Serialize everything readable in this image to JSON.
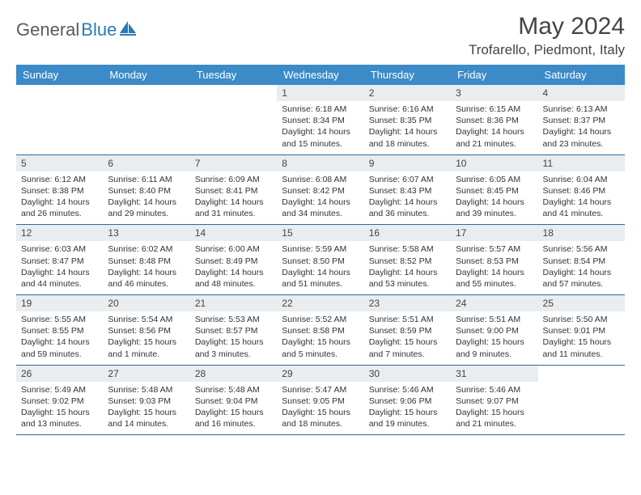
{
  "logo": {
    "text_gray": "General",
    "text_blue": "Blue"
  },
  "title": "May 2024",
  "location": "Trofarello, Piedmont, Italy",
  "colors": {
    "header_bg": "#3b8bc8",
    "header_text": "#ffffff",
    "daynum_bg": "#e9edef",
    "row_border": "#2a6a9e",
    "logo_gray": "#5a5a5a",
    "logo_blue": "#2a7ab8"
  },
  "day_headers": [
    "Sunday",
    "Monday",
    "Tuesday",
    "Wednesday",
    "Thursday",
    "Friday",
    "Saturday"
  ],
  "weeks": [
    [
      null,
      null,
      null,
      {
        "n": "1",
        "sr": "6:18 AM",
        "ss": "8:34 PM",
        "dl": "14 hours and 15 minutes."
      },
      {
        "n": "2",
        "sr": "6:16 AM",
        "ss": "8:35 PM",
        "dl": "14 hours and 18 minutes."
      },
      {
        "n": "3",
        "sr": "6:15 AM",
        "ss": "8:36 PM",
        "dl": "14 hours and 21 minutes."
      },
      {
        "n": "4",
        "sr": "6:13 AM",
        "ss": "8:37 PM",
        "dl": "14 hours and 23 minutes."
      }
    ],
    [
      {
        "n": "5",
        "sr": "6:12 AM",
        "ss": "8:38 PM",
        "dl": "14 hours and 26 minutes."
      },
      {
        "n": "6",
        "sr": "6:11 AM",
        "ss": "8:40 PM",
        "dl": "14 hours and 29 minutes."
      },
      {
        "n": "7",
        "sr": "6:09 AM",
        "ss": "8:41 PM",
        "dl": "14 hours and 31 minutes."
      },
      {
        "n": "8",
        "sr": "6:08 AM",
        "ss": "8:42 PM",
        "dl": "14 hours and 34 minutes."
      },
      {
        "n": "9",
        "sr": "6:07 AM",
        "ss": "8:43 PM",
        "dl": "14 hours and 36 minutes."
      },
      {
        "n": "10",
        "sr": "6:05 AM",
        "ss": "8:45 PM",
        "dl": "14 hours and 39 minutes."
      },
      {
        "n": "11",
        "sr": "6:04 AM",
        "ss": "8:46 PM",
        "dl": "14 hours and 41 minutes."
      }
    ],
    [
      {
        "n": "12",
        "sr": "6:03 AM",
        "ss": "8:47 PM",
        "dl": "14 hours and 44 minutes."
      },
      {
        "n": "13",
        "sr": "6:02 AM",
        "ss": "8:48 PM",
        "dl": "14 hours and 46 minutes."
      },
      {
        "n": "14",
        "sr": "6:00 AM",
        "ss": "8:49 PM",
        "dl": "14 hours and 48 minutes."
      },
      {
        "n": "15",
        "sr": "5:59 AM",
        "ss": "8:50 PM",
        "dl": "14 hours and 51 minutes."
      },
      {
        "n": "16",
        "sr": "5:58 AM",
        "ss": "8:52 PM",
        "dl": "14 hours and 53 minutes."
      },
      {
        "n": "17",
        "sr": "5:57 AM",
        "ss": "8:53 PM",
        "dl": "14 hours and 55 minutes."
      },
      {
        "n": "18",
        "sr": "5:56 AM",
        "ss": "8:54 PM",
        "dl": "14 hours and 57 minutes."
      }
    ],
    [
      {
        "n": "19",
        "sr": "5:55 AM",
        "ss": "8:55 PM",
        "dl": "14 hours and 59 minutes."
      },
      {
        "n": "20",
        "sr": "5:54 AM",
        "ss": "8:56 PM",
        "dl": "15 hours and 1 minute."
      },
      {
        "n": "21",
        "sr": "5:53 AM",
        "ss": "8:57 PM",
        "dl": "15 hours and 3 minutes."
      },
      {
        "n": "22",
        "sr": "5:52 AM",
        "ss": "8:58 PM",
        "dl": "15 hours and 5 minutes."
      },
      {
        "n": "23",
        "sr": "5:51 AM",
        "ss": "8:59 PM",
        "dl": "15 hours and 7 minutes."
      },
      {
        "n": "24",
        "sr": "5:51 AM",
        "ss": "9:00 PM",
        "dl": "15 hours and 9 minutes."
      },
      {
        "n": "25",
        "sr": "5:50 AM",
        "ss": "9:01 PM",
        "dl": "15 hours and 11 minutes."
      }
    ],
    [
      {
        "n": "26",
        "sr": "5:49 AM",
        "ss": "9:02 PM",
        "dl": "15 hours and 13 minutes."
      },
      {
        "n": "27",
        "sr": "5:48 AM",
        "ss": "9:03 PM",
        "dl": "15 hours and 14 minutes."
      },
      {
        "n": "28",
        "sr": "5:48 AM",
        "ss": "9:04 PM",
        "dl": "15 hours and 16 minutes."
      },
      {
        "n": "29",
        "sr": "5:47 AM",
        "ss": "9:05 PM",
        "dl": "15 hours and 18 minutes."
      },
      {
        "n": "30",
        "sr": "5:46 AM",
        "ss": "9:06 PM",
        "dl": "15 hours and 19 minutes."
      },
      {
        "n": "31",
        "sr": "5:46 AM",
        "ss": "9:07 PM",
        "dl": "15 hours and 21 minutes."
      },
      null
    ]
  ],
  "labels": {
    "sunrise": "Sunrise:",
    "sunset": "Sunset:",
    "daylight": "Daylight:"
  }
}
